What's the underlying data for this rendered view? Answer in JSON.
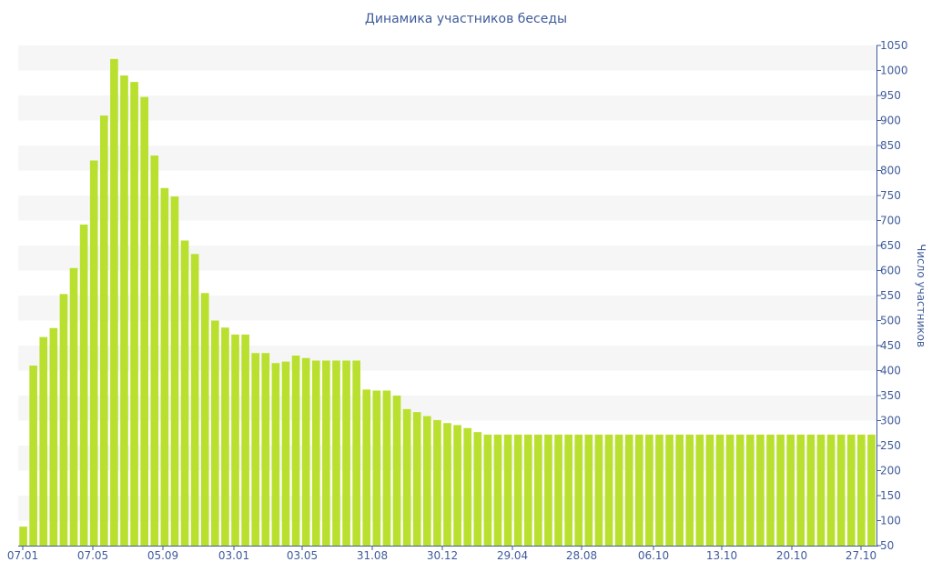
{
  "chart_data": {
    "type": "bar",
    "title": "Динамика участников беседы",
    "ylabel": "Число участников",
    "ylim": [
      50,
      1050
    ],
    "yticks": [
      50,
      100,
      150,
      200,
      250,
      300,
      350,
      400,
      450,
      500,
      550,
      600,
      650,
      700,
      750,
      800,
      850,
      900,
      950,
      1000,
      1050
    ],
    "xtick_labels": [
      "07.01",
      "07.05",
      "05.09",
      "03.01",
      "03.05",
      "31.08",
      "30.12",
      "29.04",
      "28.08",
      "06.10",
      "13.10",
      "20.10",
      "27.10"
    ],
    "bar_color": "#b9e02e",
    "grid_band_color": "#f6f6f6",
    "axis_color": "#3f5b9b",
    "y_axis_position": "right",
    "values": [
      88,
      410,
      467,
      485,
      553,
      605,
      692,
      820,
      910,
      1023,
      990,
      977,
      947,
      830,
      765,
      748,
      660,
      633,
      555,
      500,
      486,
      472,
      472,
      435,
      435,
      415,
      418,
      430,
      425,
      420,
      420,
      420,
      420,
      420,
      362,
      360,
      360,
      350,
      323,
      317,
      309,
      301,
      295,
      291,
      285,
      277,
      272,
      272,
      272,
      272,
      272,
      272,
      272,
      272,
      272,
      272,
      272,
      272,
      272,
      272,
      272,
      272,
      272,
      272,
      272,
      272,
      272,
      272,
      272,
      272,
      272,
      272,
      272,
      272,
      272,
      272,
      272,
      272,
      272,
      272,
      272,
      272,
      272,
      272,
      272
    ]
  }
}
